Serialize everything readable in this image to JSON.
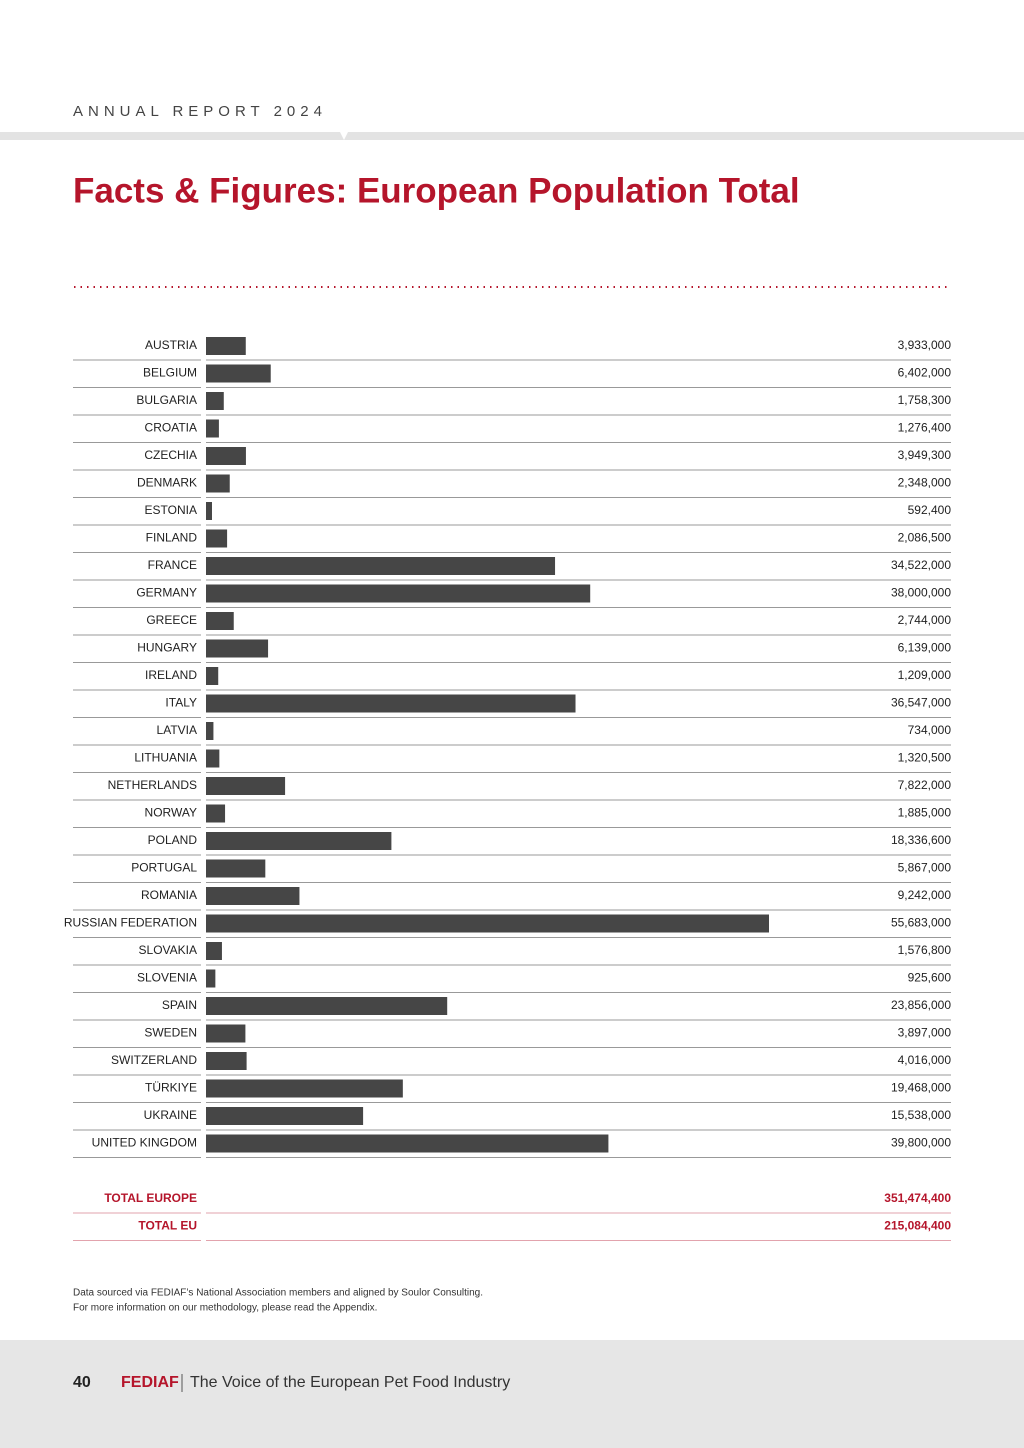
{
  "header": {
    "title": "ANNUAL REPORT 2024"
  },
  "title": "Facts & Figures: European Population Total",
  "chart_data": {
    "type": "bar",
    "color": "#464646",
    "categories": [
      "AUSTRIA",
      "BELGIUM",
      "BULGARIA",
      "CROATIA",
      "CZECHIA",
      "DENMARK",
      "ESTONIA",
      "FINLAND",
      "FRANCE",
      "GERMANY",
      "GREECE",
      "HUNGARY",
      "IRELAND",
      "ITALY",
      "LATVIA",
      "LITHUANIA",
      "NETHERLANDS",
      "NORWAY",
      "POLAND",
      "PORTUGAL",
      "ROMANIA",
      "RUSSIAN FEDERATION",
      "SLOVAKIA",
      "SLOVENIA",
      "SPAIN",
      "SWEDEN",
      "SWITZERLAND",
      "TÜRKIYE",
      "UKRAINE",
      "UNITED KINGDOM"
    ],
    "values": [
      3933000,
      6402000,
      1758300,
      1276400,
      3949300,
      2348000,
      592400,
      2086500,
      34522000,
      38000000,
      2744000,
      6139000,
      1209000,
      36547000,
      734000,
      1320500,
      7822000,
      1885000,
      18336600,
      5867000,
      9242000,
      55683000,
      1576800,
      925600,
      23856000,
      3897000,
      4016000,
      19468000,
      15538000,
      39800000
    ],
    "value_labels": [
      "3,933,000",
      "6,402,000",
      "1,758,300",
      "1,276,400",
      "3,949,300",
      "2,348,000",
      "592,400",
      "2,086,500",
      "34,522,000",
      "38,000,000",
      "2,744,000",
      "6,139,000",
      "1,209,000",
      "36,547,000",
      "734,000",
      "1,320,500",
      "7,822,000",
      "1,885,000",
      "18,336,600",
      "5,867,000",
      "9,242,000",
      "55,683,000",
      "1,576,800",
      "925,600",
      "23,856,000",
      "3,897,000",
      "4,016,000",
      "19,468,000",
      "15,538,000",
      "39,800,000"
    ]
  },
  "totals": [
    {
      "label": "TOTAL EUROPE",
      "value": "351,474,400"
    },
    {
      "label": "TOTAL EU",
      "value": "215,084,400"
    }
  ],
  "notes": [
    "Data sourced via FEDIAF’s National Association members and aligned by Soulor Consulting.",
    "For more information on our methodology, please read the Appendix."
  ],
  "footer": {
    "page": "40",
    "brand": "FEDIAF",
    "tagline": "The Voice of the European Pet Food Industry"
  }
}
